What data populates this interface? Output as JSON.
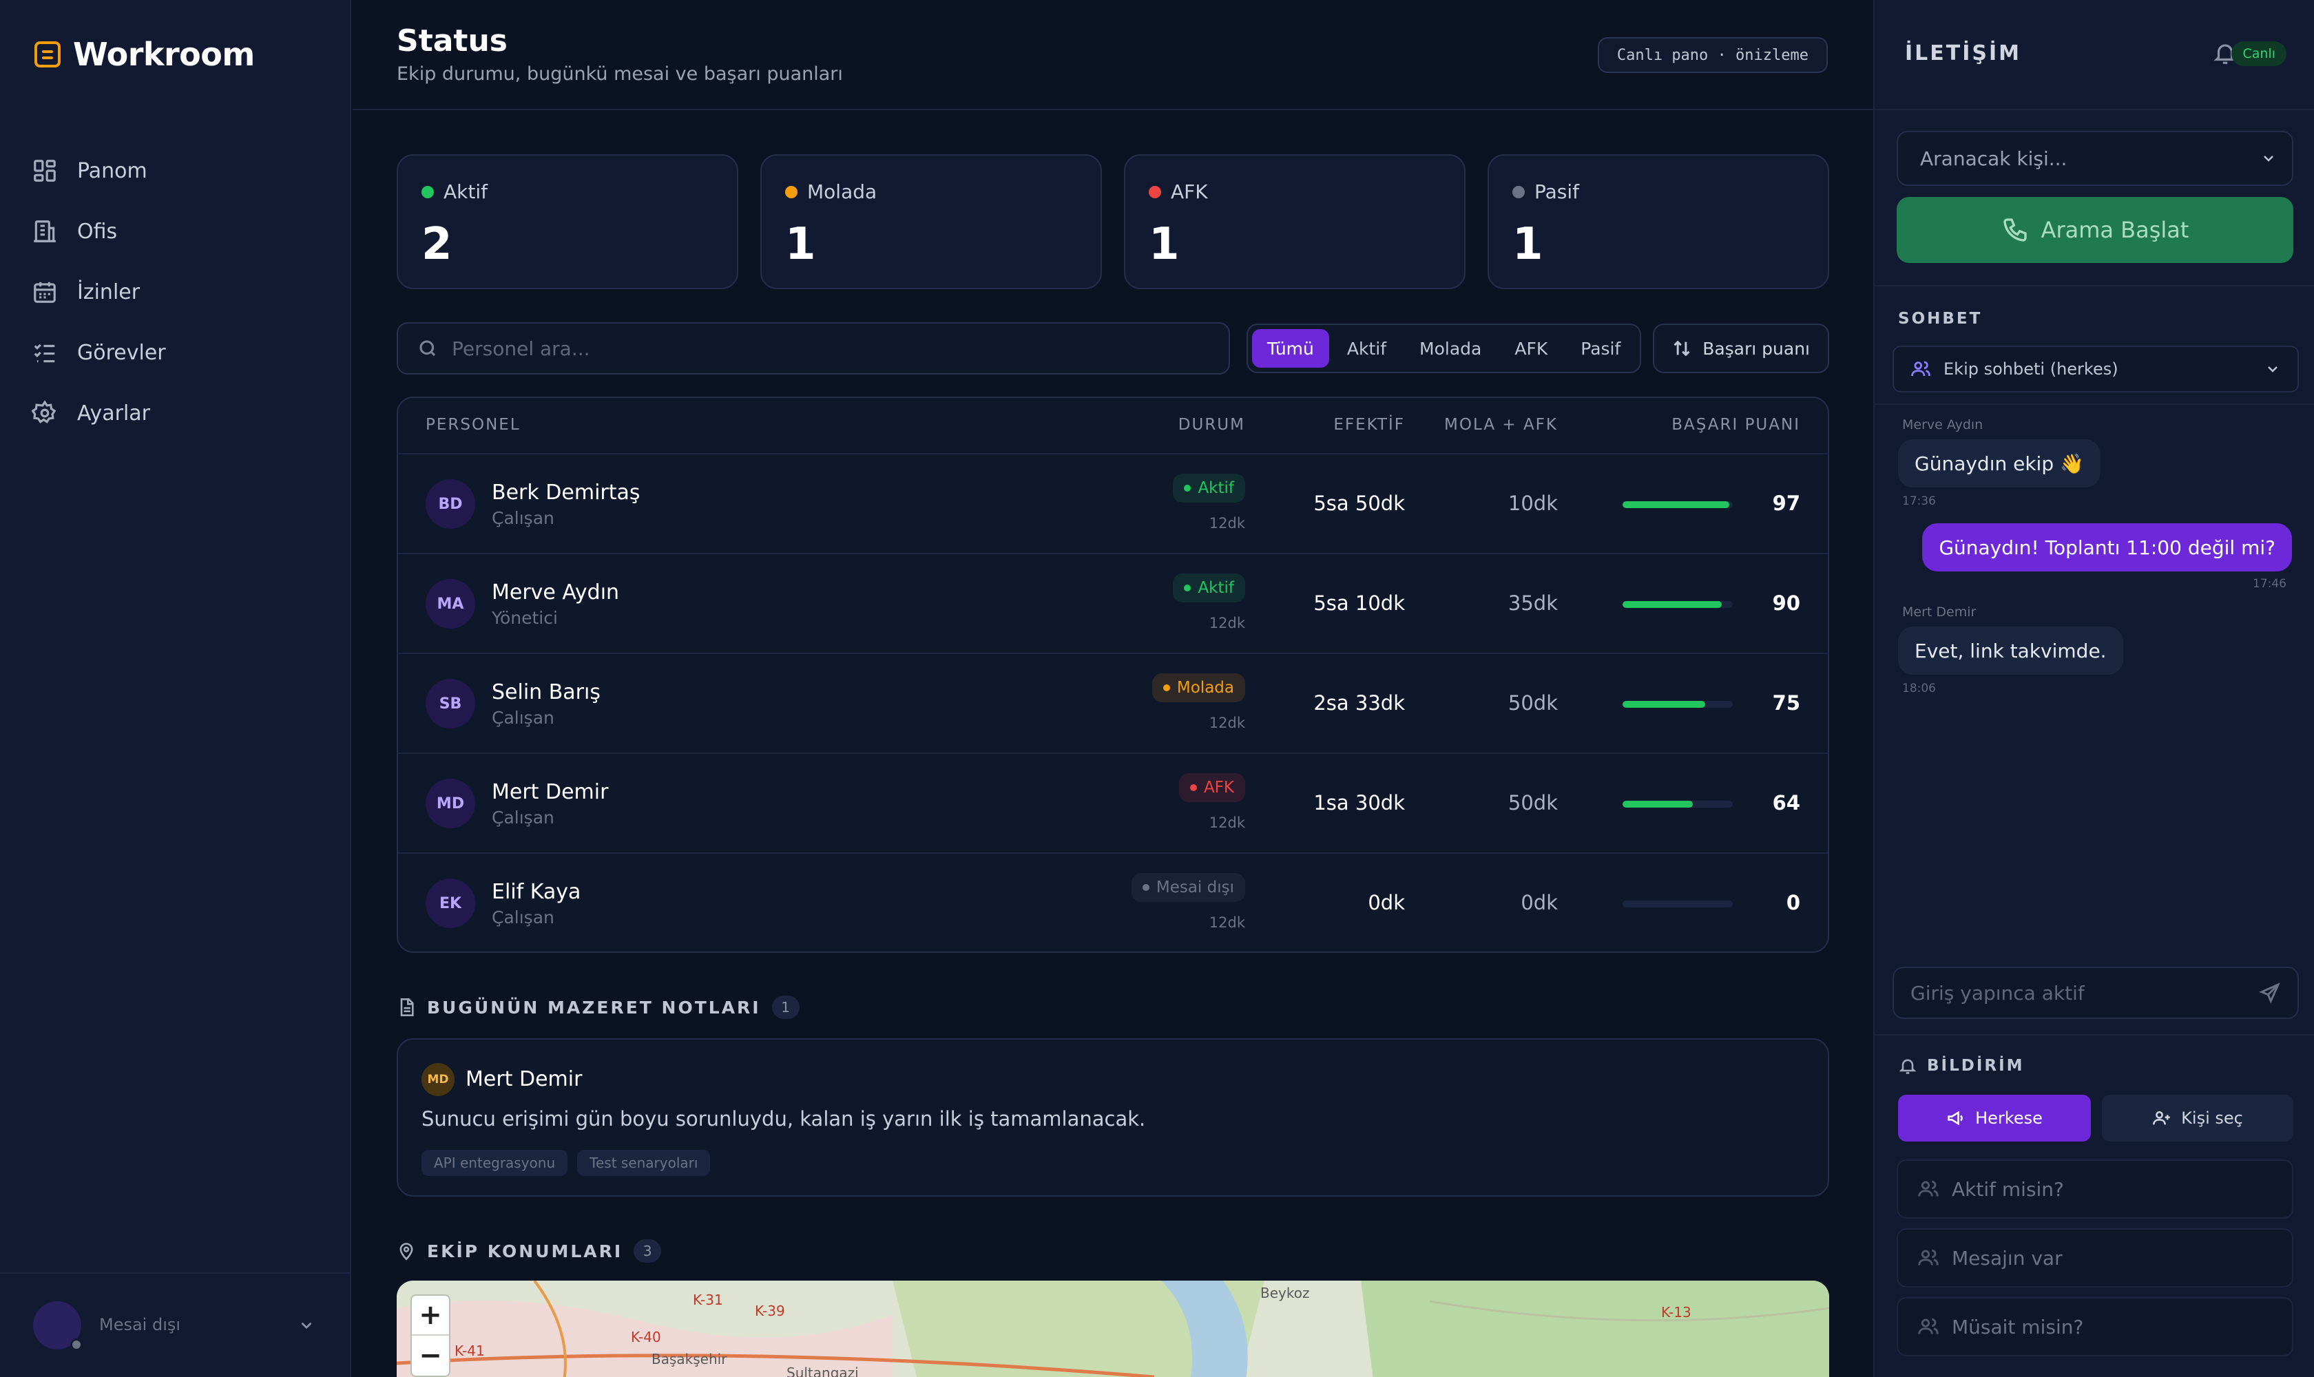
{
  "app": {
    "brand": "Workroom"
  },
  "sidebar": {
    "items": [
      {
        "label": "Panom",
        "icon": "dashboard-icon"
      },
      {
        "label": "Ofis",
        "icon": "building-icon"
      },
      {
        "label": "İzinler",
        "icon": "calendar-icon"
      },
      {
        "label": "Görevler",
        "icon": "tasklist-icon"
      },
      {
        "label": "Ayarlar",
        "icon": "gear-icon"
      }
    ],
    "footer": {
      "status": "Mesai dışı"
    }
  },
  "header": {
    "title": "Status",
    "subtitle": "Ekip durumu, bugünkü mesai ve başarı puanları",
    "badge": "Canlı pano · önizleme"
  },
  "stats": [
    {
      "label": "Aktif",
      "value": "2",
      "color": "#22c55e"
    },
    {
      "label": "Molada",
      "value": "1",
      "color": "#f59e0b"
    },
    {
      "label": "AFK",
      "value": "1",
      "color": "#ef4444"
    },
    {
      "label": "Pasif",
      "value": "1",
      "color": "#6b7385"
    }
  ],
  "search": {
    "placeholder": "Personel ara..."
  },
  "filters": {
    "options": [
      "Tümü",
      "Aktif",
      "Molada",
      "AFK",
      "Pasif"
    ],
    "selected": "Tümü"
  },
  "sort": {
    "label": "Başarı puanı"
  },
  "table": {
    "headers": {
      "personel": "PERSONEL",
      "durum": "DURUM",
      "efektif": "EFEKTİF",
      "mola": "MOLA + AFK",
      "puan": "BAŞARI PUANI"
    },
    "rows": [
      {
        "initials": "BD",
        "name": "Berk Demirtaş",
        "role": "Çalışan",
        "status": "Aktif",
        "status_color": "#22c55e",
        "since": "12dk",
        "effective": "5sa 50dk",
        "break": "10dk",
        "score": "97",
        "score_pct": 97
      },
      {
        "initials": "MA",
        "name": "Merve Aydın",
        "role": "Yönetici",
        "status": "Aktif",
        "status_color": "#22c55e",
        "since": "12dk",
        "effective": "5sa 10dk",
        "break": "35dk",
        "score": "90",
        "score_pct": 90
      },
      {
        "initials": "SB",
        "name": "Selin Barış",
        "role": "Çalışan",
        "status": "Molada",
        "status_color": "#f59e0b",
        "since": "12dk",
        "effective": "2sa 33dk",
        "break": "50dk",
        "score": "75",
        "score_pct": 75
      },
      {
        "initials": "MD",
        "name": "Mert Demir",
        "role": "Çalışan",
        "status": "AFK",
        "status_color": "#ef4444",
        "since": "12dk",
        "effective": "1sa 30dk",
        "break": "50dk",
        "score": "64",
        "score_pct": 64
      },
      {
        "initials": "EK",
        "name": "Elif Kaya",
        "role": "Çalışan",
        "status": "Mesai dışı",
        "status_color": "#6b7385",
        "since": "12dk",
        "effective": "0dk",
        "break": "0dk",
        "score": "0",
        "score_pct": 0
      }
    ]
  },
  "notes": {
    "title": "BUGÜNÜN MAZERET NOTLARI",
    "count": "1",
    "items": [
      {
        "initials": "MD",
        "name": "Mert Demir",
        "text": "Sunucu erişimi gün boyu sorunluydu, kalan iş yarın ilk iş tamamlanacak.",
        "tags": [
          "API entegrasyonu",
          "Test senaryoları"
        ]
      }
    ]
  },
  "locations": {
    "title": "EKİP KONUMLARI",
    "count": "3",
    "map_labels": [
      "Beykoz",
      "Başakşehir",
      "Sultangazi",
      "K-31",
      "K-39",
      "K-40",
      "K-41",
      "K-13"
    ]
  },
  "right_panel": {
    "title": "İLETİŞİM",
    "live": "Canlı",
    "contact_placeholder": "Aranacak kişi...",
    "call_label": "Arama Başlat",
    "chat": {
      "title": "SOHBET",
      "channel": "Ekip sohbeti (herkes)",
      "messages": [
        {
          "sender": "Merve Aydın",
          "text": "Günaydın ekip 👋",
          "time": "17:36",
          "direction": "in"
        },
        {
          "sender": "",
          "text": "Günaydın! Toplantı 11:00 değil mi?",
          "time": "17:46",
          "direction": "out"
        },
        {
          "sender": "Mert Demir",
          "text": "Evet, link takvimde.",
          "time": "18:06",
          "direction": "in"
        }
      ],
      "input_placeholder": "Giriş yapınca aktif"
    },
    "notify": {
      "title": "BİLDİRİM",
      "everyone": "Herkese",
      "pick": "Kişi seç",
      "quick": [
        "Aktif misin?",
        "Mesajın var",
        "Müsait misin?"
      ]
    }
  }
}
